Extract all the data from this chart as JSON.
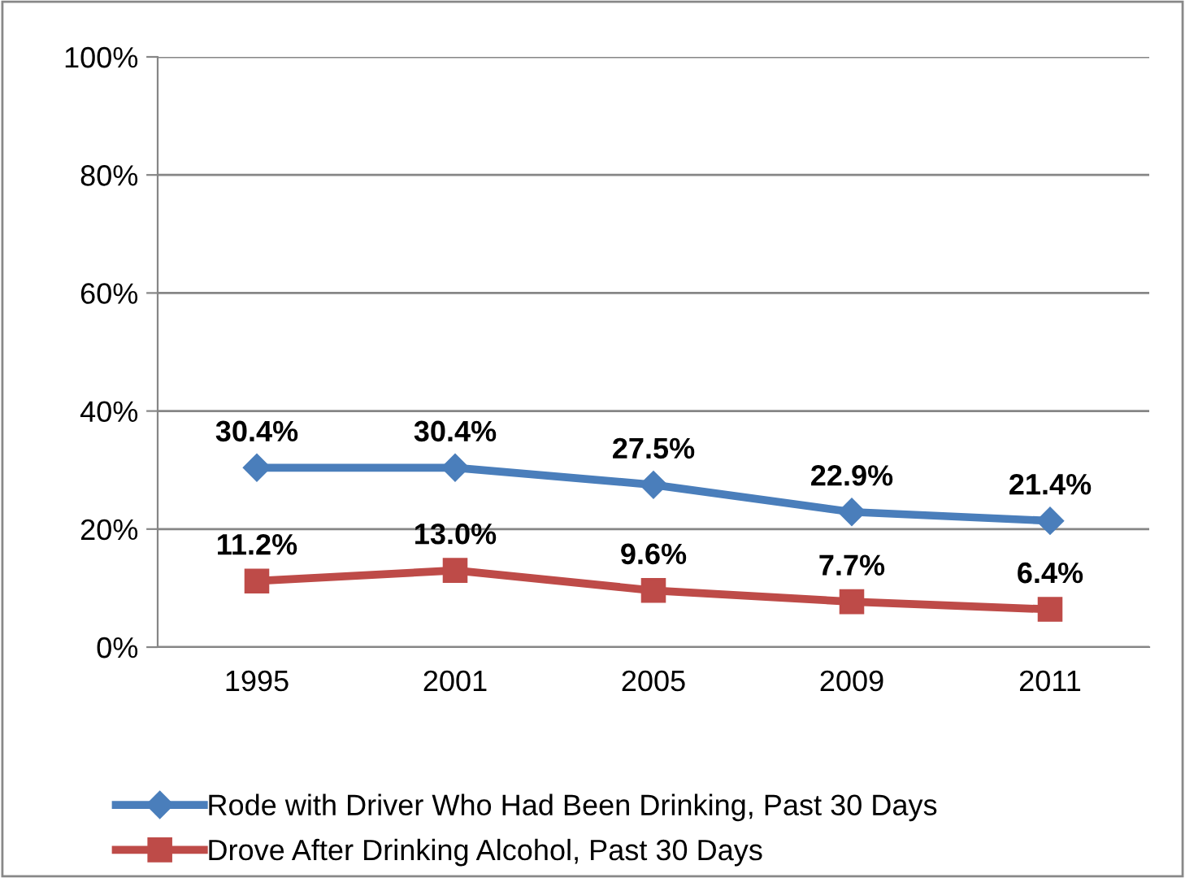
{
  "chart_data": {
    "type": "line",
    "categories": [
      "1995",
      "2001",
      "2005",
      "2009",
      "2011"
    ],
    "series": [
      {
        "name": "Rode with Driver Who Had Been Drinking, Past 30 Days",
        "color": "#4a7ebb",
        "marker": "diamond",
        "values": [
          30.4,
          30.4,
          27.5,
          22.9,
          21.4
        ],
        "value_labels": [
          "30.4%",
          "30.4%",
          "27.5%",
          "22.9%",
          "21.4%"
        ]
      },
      {
        "name": "Drove After Drinking Alcohol, Past 30 Days",
        "color": "#be4b48",
        "marker": "square",
        "values": [
          11.2,
          13.0,
          9.6,
          7.7,
          6.4
        ],
        "value_labels": [
          "11.2%",
          "13.0%",
          "9.6%",
          "7.7%",
          "6.4%"
        ]
      }
    ],
    "ylim": [
      0,
      100
    ],
    "yticks": [
      {
        "value": 0,
        "label": "0%"
      },
      {
        "value": 20,
        "label": "20%"
      },
      {
        "value": 40,
        "label": "40%"
      },
      {
        "value": 60,
        "label": "60%"
      },
      {
        "value": 80,
        "label": "80%"
      },
      {
        "value": 100,
        "label": "100%"
      }
    ],
    "grid": "y",
    "legend": "bottom",
    "line_style": "solid"
  }
}
